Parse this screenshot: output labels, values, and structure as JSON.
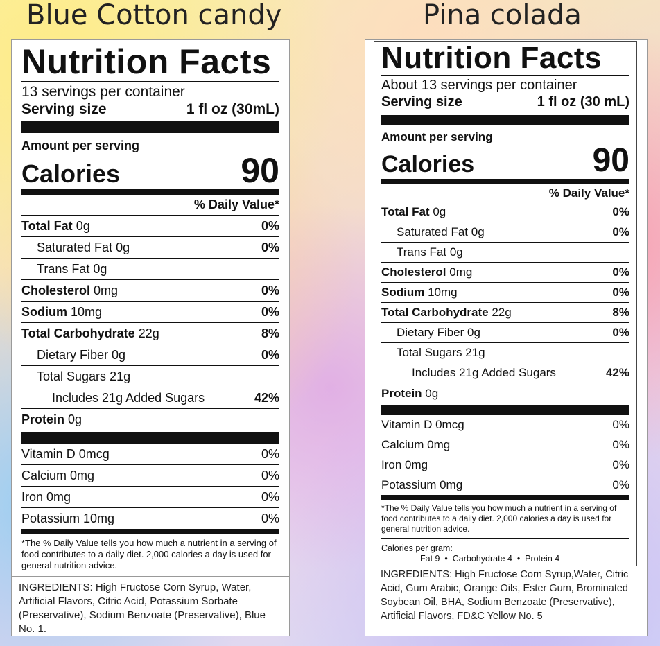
{
  "left": {
    "product": "Blue Cotton candy",
    "heading": "Nutrition Facts",
    "servings": "13 servings per container",
    "serving_size_label": "Serving size",
    "serving_size_value": "1 fl oz (30mL)",
    "amount_label": "Amount per serving",
    "calories_label": "Calories",
    "calories_value": "90",
    "dv_header": "% Daily Value*",
    "nutrients": [
      {
        "name": "Total Fat",
        "amount": "0g",
        "dv": "0%"
      },
      {
        "name": "Saturated Fat",
        "amount": "0g",
        "dv": "0%"
      },
      {
        "name": "Trans Fat",
        "amount": "0g",
        "dv": ""
      },
      {
        "name": "Cholesterol",
        "amount": "0mg",
        "dv": "0%"
      },
      {
        "name": "Sodium",
        "amount": "10mg",
        "dv": "0%"
      },
      {
        "name": "Total Carbohydrate",
        "amount": "22g",
        "dv": "8%"
      },
      {
        "name": "Dietary Fiber",
        "amount": "0g",
        "dv": "0%"
      },
      {
        "name": "Total Sugars",
        "amount": "21g",
        "dv": ""
      },
      {
        "name": "Includes 21g Added Sugars",
        "amount": "",
        "dv": "42%"
      },
      {
        "name": "Protein",
        "amount": "0g",
        "dv": ""
      }
    ],
    "vitamins": [
      {
        "name": "Vitamin D 0mcg",
        "dv": "0%"
      },
      {
        "name": "Calcium 0mg",
        "dv": "0%"
      },
      {
        "name": "Iron 0mg",
        "dv": "0%"
      },
      {
        "name": "Potassium 10mg",
        "dv": "0%"
      }
    ],
    "footnote": "*The % Daily Value tells you how much a nutrient in a serving of food contributes to a daily diet. 2,000 calories a day is used for general nutrition advice.",
    "ingredients": "INGREDIENTS: High Fructose Corn Syrup, Water, Artificial Flavors, Citric Acid, Potassium Sorbate (Preservative), Sodium Benzoate (Preservative), Blue No. 1."
  },
  "right": {
    "product": "Pina colada",
    "heading": "Nutrition Facts",
    "servings": "About 13 servings per container",
    "serving_size_label": "Serving size",
    "serving_size_value": "1 fl oz (30 mL)",
    "amount_label": "Amount per serving",
    "calories_label": "Calories",
    "calories_value": "90",
    "dv_header": "% Daily Value*",
    "nutrients": [
      {
        "name": "Total Fat",
        "amount": "0g",
        "dv": "0%"
      },
      {
        "name": "Saturated Fat",
        "amount": "0g",
        "dv": "0%"
      },
      {
        "name": "Trans Fat",
        "amount": "0g",
        "dv": ""
      },
      {
        "name": "Cholesterol",
        "amount": "0mg",
        "dv": "0%"
      },
      {
        "name": "Sodium",
        "amount": "10mg",
        "dv": "0%"
      },
      {
        "name": "Total Carbohydrate",
        "amount": "22g",
        "dv": "8%"
      },
      {
        "name": "Dietary Fiber",
        "amount": "0g",
        "dv": "0%"
      },
      {
        "name": "Total Sugars",
        "amount": "21g",
        "dv": ""
      },
      {
        "name": "Includes 21g Added Sugars",
        "amount": "",
        "dv": "42%"
      },
      {
        "name": "Protein",
        "amount": "0g",
        "dv": ""
      }
    ],
    "vitamins": [
      {
        "name": "Vitamin D 0mcg",
        "dv": "0%"
      },
      {
        "name": "Calcium 0mg",
        "dv": "0%"
      },
      {
        "name": "Iron 0mg",
        "dv": "0%"
      },
      {
        "name": "Potassium 0mg",
        "dv": "0%"
      }
    ],
    "footnote": "*The % Daily Value tells you how much a nutrient in a serving of food contributes to a daily diet. 2,000 calories a day is used for general nutrition advice.",
    "calories_per_gram_label": "Calories per gram:",
    "calories_per_gram_items": "Fat 9  •  Carbohydrate 4  •  Protein 4",
    "ingredients": "INGREDIENTS: High Fructose Corn Syrup,Water, Citric Acid, Gum Arabic, Orange Oils, Ester Gum, Brominated Soybean Oil, BHA, Sodium Benzoate (Preservative), Artificial Flavors, FD&C Yellow No. 5"
  }
}
